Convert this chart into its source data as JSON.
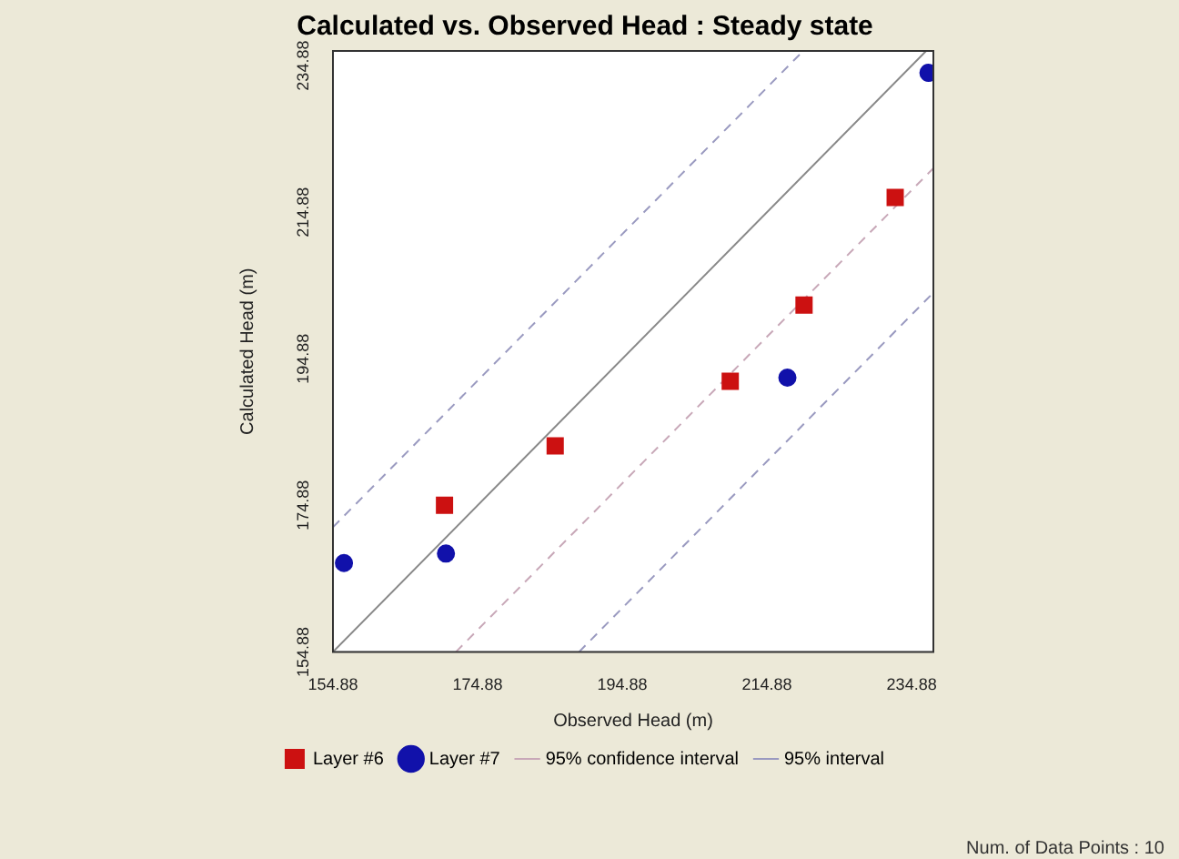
{
  "chart_data": {
    "type": "scatter",
    "title": "Calculated vs. Observed Head : Steady state",
    "xlabel": "Observed Head (m)",
    "ylabel": "Calculated Head (m)",
    "xlim": [
      154.88,
      237.88
    ],
    "ylim": [
      154.88,
      236.88
    ],
    "xticks": [
      154.88,
      174.88,
      194.88,
      214.88,
      234.88
    ],
    "yticks": [
      154.88,
      174.88,
      194.88,
      214.88,
      234.88
    ],
    "grid": false,
    "legend": "bottom",
    "series": [
      {
        "name": "Layer #6",
        "color": "#cc1111",
        "marker": "square",
        "x": [
          170.3,
          185.6,
          209.8,
          220.0,
          232.6
        ],
        "values": [
          174.9,
          183.0,
          191.8,
          202.2,
          216.9
        ]
      },
      {
        "name": "Layer #7",
        "color": "#1111aa",
        "marker": "circle",
        "x": [
          156.4,
          170.5,
          217.7,
          237.2
        ],
        "values": [
          167.0,
          168.3,
          192.3,
          233.9
        ]
      },
      {
        "name": "95% confidence interval",
        "type": "line",
        "color": "#c8a8b8",
        "line_style": "dashed",
        "x": [
          171.88,
          237.88
        ],
        "values": [
          154.88,
          220.88
        ]
      },
      {
        "name": "95% interval",
        "type": "line",
        "color": "#9a9ac0",
        "line_style": "dashed",
        "x": [
          154.88,
          219.88
        ],
        "values": [
          171.9,
          236.88
        ]
      },
      {
        "type": "line",
        "color": "#9a9ac0",
        "line_style": "dashed",
        "x": [
          188.9,
          237.88
        ],
        "values": [
          154.88,
          203.9
        ]
      },
      {
        "type": "line",
        "color": "#888888",
        "line_style": "solid",
        "x": [
          154.88,
          236.88
        ],
        "values": [
          154.88,
          236.88
        ]
      }
    ],
    "annotations": [
      "Num. of Data Points : 10"
    ]
  }
}
